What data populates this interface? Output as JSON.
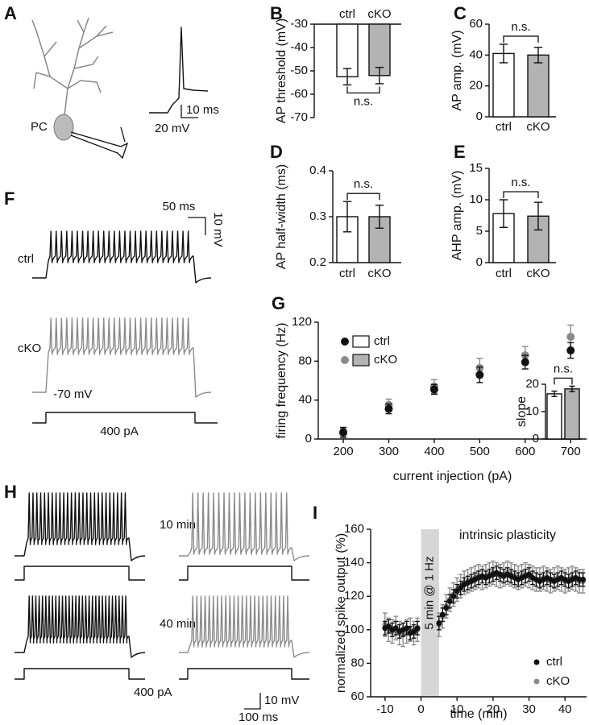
{
  "panel_a": {
    "label": "A",
    "cell_label": "PC",
    "scale_time": "10 ms",
    "scale_voltage": "20 mV"
  },
  "panel_f": {
    "label": "F",
    "trace_labels": [
      "ctrl",
      "cKO"
    ],
    "resting_potential": "-70 mV",
    "current": "400 pA",
    "scale_time": "50 ms",
    "scale_voltage": "10 mV"
  },
  "panel_h": {
    "label": "H",
    "time_labels": [
      "10 min",
      "40 min"
    ],
    "current": "400 pA",
    "scale_voltage": "10 mV",
    "scale_time": "100 ms"
  },
  "chart_data": [
    {
      "type": "bar",
      "panel_label": "B",
      "ylabel": "AP threshold (mV)",
      "categories": [
        "ctrl",
        "cKO"
      ],
      "values": [
        -52.5,
        -52
      ],
      "errors": [
        3.5,
        3.5
      ],
      "colors": [
        "#ffffff",
        "#b3b3b3"
      ],
      "ylim": [
        -70,
        -30
      ],
      "yticks": [
        -30,
        -40,
        -50,
        -60,
        -70
      ],
      "annotation": "n.s."
    },
    {
      "type": "bar",
      "panel_label": "C",
      "ylabel": "AP amp. (mV)",
      "categories": [
        "ctrl",
        "cKO"
      ],
      "values": [
        41,
        40
      ],
      "errors": [
        6,
        5
      ],
      "colors": [
        "#ffffff",
        "#b3b3b3"
      ],
      "ylim": [
        0,
        60
      ],
      "yticks": [
        0,
        20,
        40,
        60
      ],
      "annotation": "n.s."
    },
    {
      "type": "bar",
      "panel_label": "D",
      "ylabel": "AP half-width (ms)",
      "categories": [
        "ctrl",
        "cKO"
      ],
      "values": [
        0.3,
        0.3
      ],
      "errors": [
        0.033,
        0.025
      ],
      "colors": [
        "#ffffff",
        "#b3b3b3"
      ],
      "ylim": [
        0.2,
        0.4
      ],
      "yticks": [
        0.2,
        0.3,
        0.4
      ],
      "annotation": "n.s."
    },
    {
      "type": "bar",
      "panel_label": "E",
      "ylabel": "AHP amp. (mV)",
      "categories": [
        "ctrl",
        "cKO"
      ],
      "values": [
        7.8,
        7.4
      ],
      "errors": [
        2.2,
        2.2
      ],
      "colors": [
        "#ffffff",
        "#b3b3b3"
      ],
      "ylim": [
        0,
        15
      ],
      "yticks": [
        0,
        5,
        10,
        15
      ],
      "annotation": "n.s."
    },
    {
      "type": "scatter",
      "panel_label": "G",
      "xlabel": "current injection (pA)",
      "ylabel": "firing frequency (Hz)",
      "x": [
        200,
        300,
        400,
        500,
        600,
        700
      ],
      "xlim": [
        145,
        735
      ],
      "ylim": [
        0,
        120
      ],
      "xticks": [
        200,
        300,
        400,
        500,
        600,
        700
      ],
      "yticks": [
        0,
        40,
        80,
        120
      ],
      "legend": "upper left",
      "series": [
        {
          "name": "cKO",
          "color": "#8a8a8a",
          "values": [
            6,
            35,
            54,
            73,
            86,
            105
          ],
          "errors": [
            5,
            6,
            7,
            10,
            9,
            12
          ]
        },
        {
          "name": "ctrl",
          "color": "#111111",
          "values": [
            7,
            31,
            51,
            66,
            79,
            91
          ],
          "errors": [
            5,
            5,
            5,
            8,
            7,
            8
          ]
        }
      ]
    },
    {
      "type": "bar",
      "ylabel": "slope",
      "values": [
        16.5,
        18.3
      ],
      "errors": [
        1,
        1
      ],
      "colors": [
        "#ffffff",
        "#b3b3b3"
      ],
      "ylim": [
        0,
        20
      ],
      "yticks": [
        0,
        10,
        20
      ],
      "annotation": "n.s."
    },
    {
      "type": "scatter",
      "panel_label": "I",
      "xlabel": "time (min)",
      "ylabel": "normalized spike output (%)",
      "annotation": "intrinsic plasticity",
      "shade": {
        "x": [
          0,
          5
        ],
        "label": "5 min @ 1 Hz"
      },
      "x": [
        -10,
        -9,
        -8,
        -7,
        -6,
        -5,
        -4,
        -3,
        -2,
        -1,
        5,
        6,
        7,
        8,
        9,
        10,
        11,
        12,
        13,
        14,
        15,
        16,
        17,
        18,
        19,
        20,
        21,
        22,
        23,
        24,
        25,
        26,
        27,
        28,
        29,
        30,
        31,
        32,
        33,
        34,
        35,
        36,
        37,
        38,
        39,
        40,
        41,
        42,
        43,
        44,
        45
      ],
      "xlim": [
        -14,
        46
      ],
      "ylim": [
        60,
        160
      ],
      "xticks": [
        -10,
        0,
        10,
        20,
        30,
        40
      ],
      "yticks": [
        60,
        80,
        100,
        120,
        140,
        160
      ],
      "legend": "lower right",
      "series": [
        {
          "name": "cKO",
          "color": "#8a8a8a",
          "values": [
            103,
            100,
            99,
            101,
            98,
            97,
            99,
            100,
            98,
            100,
            103,
            108,
            114,
            118,
            121,
            124,
            126,
            128,
            129,
            130,
            131,
            132,
            131,
            132,
            133,
            134,
            133,
            132,
            133,
            134,
            133,
            132,
            131,
            132,
            133,
            132,
            131,
            130,
            130,
            131,
            130,
            129,
            130,
            131,
            130,
            129,
            130,
            131,
            130,
            129,
            129
          ],
          "errors": [
            7,
            7,
            7,
            7,
            7,
            7,
            7,
            7,
            7,
            7,
            7,
            7,
            7,
            7,
            7,
            7,
            7,
            7,
            7,
            7,
            7,
            7,
            7,
            7,
            7,
            7,
            7,
            7,
            7,
            7,
            7,
            7,
            7,
            7,
            7,
            7,
            7,
            7,
            7,
            7,
            7,
            7,
            7,
            7,
            7,
            7,
            7,
            7,
            7,
            7,
            7
          ]
        },
        {
          "name": "ctrl",
          "color": "#111111",
          "values": [
            101,
            102,
            100,
            101,
            99,
            100,
            101,
            98,
            99,
            101,
            104,
            109,
            113,
            117,
            120,
            123,
            125,
            127,
            128,
            129,
            130,
            131,
            132,
            131,
            132,
            133,
            134,
            133,
            132,
            133,
            132,
            131,
            130,
            131,
            132,
            133,
            131,
            130,
            129,
            130,
            131,
            130,
            129,
            130,
            131,
            130,
            129,
            130,
            131,
            130,
            130
          ],
          "errors": [
            4,
            4,
            4,
            4,
            4,
            4,
            4,
            4,
            4,
            4,
            4,
            4,
            4,
            4,
            4,
            4,
            4,
            4,
            4,
            4,
            4,
            4,
            4,
            4,
            4,
            4,
            4,
            4,
            4,
            4,
            4,
            4,
            4,
            4,
            4,
            4,
            4,
            4,
            4,
            4,
            4,
            4,
            4,
            4,
            4,
            4,
            4,
            4,
            4,
            4,
            4
          ]
        }
      ]
    }
  ]
}
